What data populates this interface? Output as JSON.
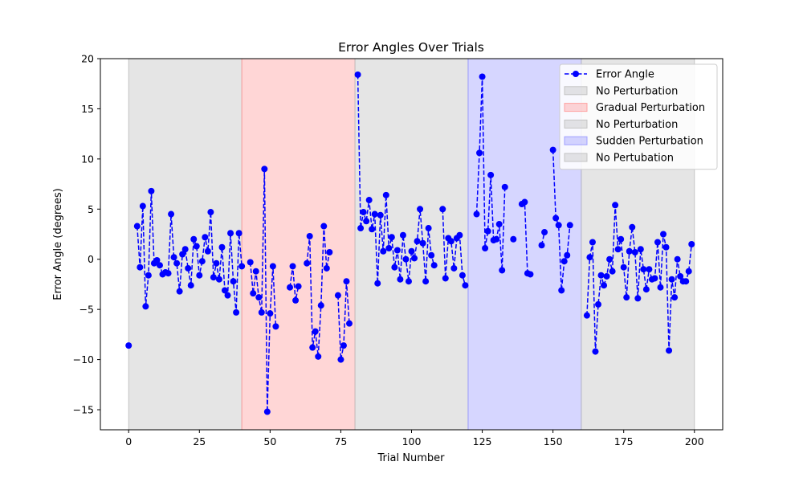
{
  "chart_data": {
    "type": "line",
    "title": "Error Angles Over Trials",
    "xlabel": "Trial Number",
    "ylabel": "Error Angle (degrees)",
    "xlim": [
      -10,
      210
    ],
    "ylim": [
      -17,
      20
    ],
    "xticks": [
      0,
      25,
      50,
      75,
      100,
      125,
      150,
      175,
      200
    ],
    "yticks": [
      -15,
      -10,
      -5,
      0,
      5,
      10,
      15,
      20
    ],
    "grid": false,
    "legend_position": "top-right",
    "regions": [
      {
        "name": "No Perturbation",
        "start": 0,
        "end": 40,
        "color": "#bfbfbf"
      },
      {
        "name": "Gradual Perturbation",
        "start": 40,
        "end": 80,
        "color": "#ff9999"
      },
      {
        "name": "No Perturbation",
        "start": 80,
        "end": 120,
        "color": "#bfbfbf"
      },
      {
        "name": "Sudden Perturbation",
        "start": 120,
        "end": 160,
        "color": "#9999ff"
      },
      {
        "name": "No Pertubation",
        "start": 160,
        "end": 200,
        "color": "#bfbfbf"
      }
    ],
    "series": [
      {
        "name": "Error Angle",
        "color": "#0000ff",
        "style": "dashed-with-markers",
        "segments": [
          [
            [
              0,
              -8.6
            ]
          ],
          [
            [
              3,
              3.3
            ],
            [
              4,
              -0.8
            ],
            [
              5,
              5.3
            ],
            [
              6,
              -4.7
            ],
            [
              7,
              -1.6
            ],
            [
              8,
              6.8
            ],
            [
              9,
              -0.4
            ],
            [
              10,
              -0.1
            ],
            [
              11,
              -0.6
            ],
            [
              12,
              -1.5
            ],
            [
              13,
              -1.3
            ],
            [
              14,
              -1.4
            ],
            [
              15,
              4.5
            ],
            [
              16,
              0.2
            ],
            [
              17,
              -0.4
            ],
            [
              18,
              -3.2
            ],
            [
              19,
              0.5
            ],
            [
              20,
              1.0
            ],
            [
              21,
              -0.9
            ],
            [
              22,
              -2.6
            ],
            [
              23,
              2.0
            ],
            [
              24,
              1.3
            ],
            [
              25,
              -1.6
            ],
            [
              26,
              -0.2
            ],
            [
              27,
              2.2
            ],
            [
              28,
              0.8
            ],
            [
              29,
              4.7
            ],
            [
              30,
              -1.8
            ],
            [
              31,
              -0.4
            ],
            [
              32,
              -2.0
            ],
            [
              33,
              1.2
            ],
            [
              34,
              -3.1
            ],
            [
              35,
              -3.6
            ],
            [
              36,
              2.6
            ],
            [
              37,
              -2.2
            ],
            [
              38,
              -5.3
            ],
            [
              39,
              2.6
            ],
            [
              40,
              -0.7
            ]
          ],
          [
            [
              43,
              -0.3
            ],
            [
              44,
              -3.4
            ],
            [
              45,
              -1.2
            ],
            [
              46,
              -3.8
            ],
            [
              47,
              -5.3
            ],
            [
              48,
              9.0
            ],
            [
              49,
              -15.2
            ],
            [
              50,
              -5.4
            ],
            [
              51,
              -0.7
            ],
            [
              52,
              -6.7
            ]
          ],
          [
            [
              57,
              -2.8
            ],
            [
              58,
              -0.7
            ],
            [
              59,
              -4.1
            ],
            [
              60,
              -2.7
            ]
          ],
          [
            [
              63,
              -0.4
            ],
            [
              64,
              2.3
            ],
            [
              65,
              -8.8
            ],
            [
              66,
              -7.2
            ],
            [
              67,
              -9.7
            ],
            [
              68,
              -4.6
            ],
            [
              69,
              3.3
            ],
            [
              70,
              -0.9
            ],
            [
              71,
              0.7
            ]
          ],
          [
            [
              74,
              -3.6
            ],
            [
              75,
              -10.0
            ],
            [
              76,
              -8.6
            ],
            [
              77,
              -2.2
            ],
            [
              78,
              -6.4
            ]
          ],
          [
            [
              81,
              18.4
            ],
            [
              82,
              3.1
            ],
            [
              83,
              4.7
            ],
            [
              84,
              3.8
            ],
            [
              85,
              5.9
            ],
            [
              86,
              3.0
            ],
            [
              87,
              4.5
            ],
            [
              88,
              -2.4
            ],
            [
              89,
              4.4
            ],
            [
              90,
              0.8
            ],
            [
              91,
              6.4
            ],
            [
              92,
              1.1
            ],
            [
              93,
              2.2
            ],
            [
              94,
              -0.8
            ],
            [
              95,
              0.9
            ],
            [
              96,
              -2.0
            ],
            [
              97,
              2.4
            ],
            [
              98,
              0.0
            ],
            [
              99,
              -2.2
            ],
            [
              100,
              0.8
            ],
            [
              101,
              0.1
            ],
            [
              102,
              1.8
            ],
            [
              103,
              5.0
            ],
            [
              104,
              1.6
            ],
            [
              105,
              -2.2
            ],
            [
              106,
              3.1
            ],
            [
              107,
              0.4
            ],
            [
              108,
              -0.6
            ]
          ],
          [
            [
              111,
              5.0
            ],
            [
              112,
              -1.9
            ],
            [
              113,
              2.1
            ],
            [
              114,
              1.8
            ],
            [
              115,
              -0.9
            ],
            [
              116,
              2.1
            ],
            [
              117,
              2.4
            ],
            [
              118,
              -1.6
            ],
            [
              119,
              -2.6
            ]
          ],
          [
            [
              123,
              4.5
            ],
            [
              124,
              10.6
            ],
            [
              125,
              18.2
            ],
            [
              126,
              1.1
            ],
            [
              127,
              2.8
            ],
            [
              128,
              8.4
            ],
            [
              129,
              1.9
            ],
            [
              130,
              2.0
            ],
            [
              131,
              3.5
            ],
            [
              132,
              -1.1
            ],
            [
              133,
              7.2
            ]
          ],
          [
            [
              136,
              2.0
            ]
          ],
          [
            [
              139,
              5.5
            ],
            [
              140,
              5.7
            ],
            [
              141,
              -1.4
            ],
            [
              142,
              -1.5
            ]
          ],
          [
            [
              146,
              1.4
            ],
            [
              147,
              2.7
            ]
          ],
          [
            [
              150,
              10.9
            ],
            [
              151,
              4.1
            ],
            [
              152,
              3.4
            ],
            [
              153,
              -3.1
            ],
            [
              154,
              -0.2
            ],
            [
              155,
              0.4
            ],
            [
              156,
              3.4
            ]
          ],
          [
            [
              162,
              -5.6
            ],
            [
              163,
              0.2
            ],
            [
              164,
              1.7
            ],
            [
              165,
              -9.2
            ],
            [
              166,
              -4.5
            ],
            [
              167,
              -1.6
            ],
            [
              168,
              -2.6
            ],
            [
              169,
              -1.7
            ],
            [
              170,
              0.0
            ],
            [
              171,
              -1.2
            ],
            [
              172,
              5.4
            ],
            [
              173,
              1.0
            ],
            [
              174,
              2.0
            ],
            [
              175,
              -0.8
            ],
            [
              176,
              -3.8
            ],
            [
              177,
              0.8
            ],
            [
              178,
              3.2
            ],
            [
              179,
              0.7
            ],
            [
              180,
              -3.9
            ],
            [
              181,
              1.0
            ],
            [
              182,
              -1.0
            ],
            [
              183,
              -3.0
            ],
            [
              184,
              -1.0
            ],
            [
              185,
              -2.0
            ],
            [
              186,
              -1.9
            ],
            [
              187,
              1.7
            ],
            [
              188,
              -2.8
            ],
            [
              189,
              2.5
            ],
            [
              190,
              1.2
            ],
            [
              191,
              -9.1
            ],
            [
              192,
              -2.0
            ],
            [
              193,
              -3.8
            ],
            [
              194,
              0.0
            ],
            [
              195,
              -1.7
            ],
            [
              196,
              -2.2
            ],
            [
              197,
              -2.2
            ],
            [
              198,
              -1.2
            ],
            [
              199,
              1.5
            ]
          ]
        ]
      }
    ]
  }
}
